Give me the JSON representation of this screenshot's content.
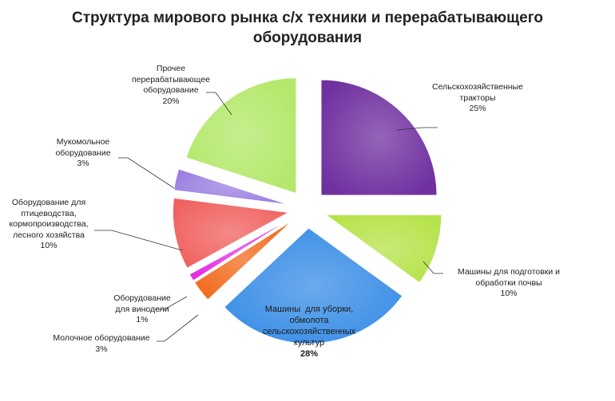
{
  "chart_data": {
    "type": "pie",
    "title": [
      "Структура мирового рынка с/х техники и перерабатывающего",
      "оборудования"
    ],
    "slices": [
      {
        "label": "Сельскохозяйственные\nтракторы",
        "value": 25,
        "value_label": "25%",
        "color": "#7030a0"
      },
      {
        "label": "Машины для подготовки и\nобработки почвы",
        "value": 10,
        "value_label": "10%",
        "color": "#b6e34a"
      },
      {
        "label": "Машины  для уборки,\nобмолота\nсельскохозяйственных\nкультур",
        "value": 28,
        "value_label": "28%",
        "color": "#3a8ee6"
      },
      {
        "label": "Молочное оборудование",
        "value": 3,
        "value_label": "3%",
        "color": "#f26b1d"
      },
      {
        "label": "Оборудование\nдля винодели",
        "value": 1,
        "value_label": "1%",
        "color": "#e32ee0"
      },
      {
        "label": "Оборудование для\nптицеводства,\nкормопроизводства,\nлесного хозяйства",
        "value": 10,
        "value_label": "10%",
        "color": "#f0625f"
      },
      {
        "label": "Мукомольное\nоборудование",
        "value": 3,
        "value_label": "3%",
        "color": "#9b7fe0"
      },
      {
        "label": "Прочее\nперерабатывающее\nоборудование",
        "value": 20,
        "value_label": "20%",
        "color": "#b3e86a"
      }
    ]
  }
}
